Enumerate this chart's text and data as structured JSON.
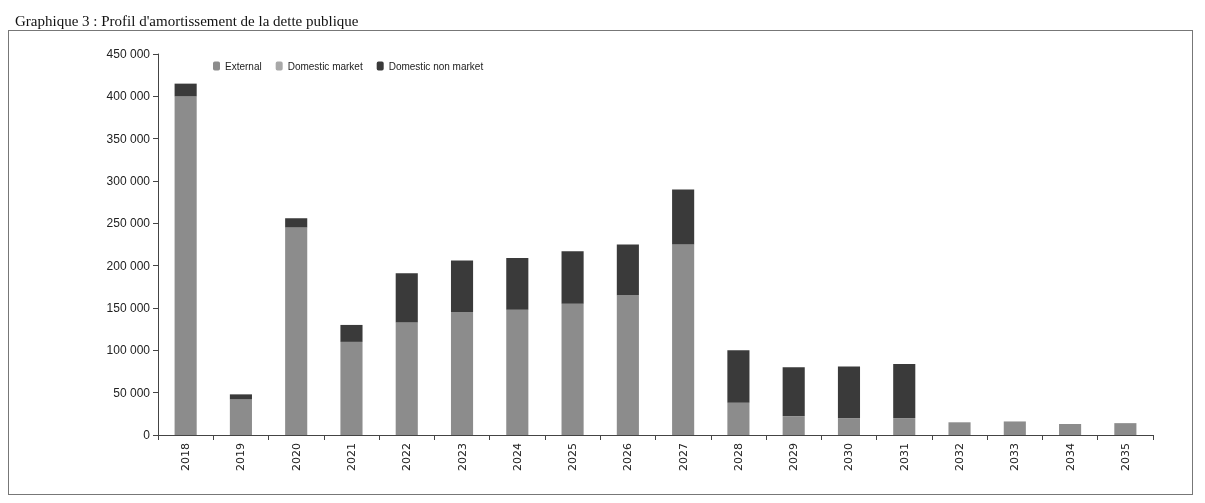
{
  "chart_data": {
    "type": "bar",
    "title": "Graphique 3 : Profil d'amortissement de la dette publique",
    "stacked": true,
    "legend": "top left",
    "grid": false,
    "categories": [
      "2018",
      "2019",
      "2020",
      "2021",
      "2022",
      "2023",
      "2024",
      "2025",
      "2026",
      "2027",
      "2028",
      "2029",
      "2030",
      "2031",
      "2032",
      "2033",
      "2034",
      "2035"
    ],
    "series": [
      {
        "name": "External",
        "color": "#8c8c8c",
        "values": [
          400000,
          42000,
          245000,
          110000,
          133000,
          145000,
          148000,
          155000,
          165000,
          225000,
          38000,
          22000,
          20000,
          20000,
          15000,
          16000,
          13000,
          14000
        ]
      },
      {
        "name": "Domestic market",
        "color": "#a8a8a8",
        "values": [
          0,
          0,
          0,
          0,
          0,
          0,
          0,
          0,
          0,
          0,
          0,
          0,
          0,
          0,
          0,
          0,
          0,
          0
        ]
      },
      {
        "name": "Domestic non market",
        "color": "#3a3a3a",
        "values": [
          15000,
          6000,
          11000,
          20000,
          58000,
          61000,
          61000,
          62000,
          60000,
          65000,
          62000,
          58000,
          61000,
          64000,
          0,
          0,
          0,
          0
        ]
      }
    ],
    "ylim": [
      0,
      450000
    ],
    "yticks": [
      0,
      {
        "value": 50000,
        "label": "50 000"
      },
      {
        "value": 100000,
        "label": "100 000"
      },
      {
        "value": 150000,
        "label": "150 000"
      },
      {
        "value": 200000,
        "label": "200 000"
      },
      {
        "value": 250000,
        "label": "250 000"
      },
      {
        "value": 300000,
        "label": "300 000"
      },
      {
        "value": 350000,
        "label": "350 000"
      },
      {
        "value": 400000,
        "label": "400 000"
      },
      {
        "value": 450000,
        "label": "450 000"
      }
    ]
  }
}
